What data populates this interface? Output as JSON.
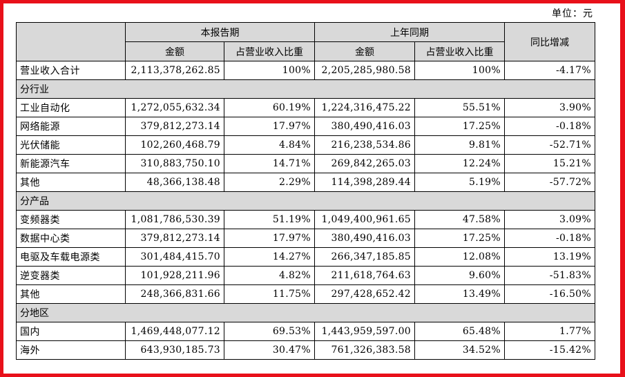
{
  "unit_label": "单位：元",
  "header": {
    "current_period": "本报告期",
    "prior_period": "上年同期",
    "yoy": "同比增减",
    "amount": "金额",
    "ratio": "占营业收入比重"
  },
  "total": {
    "label": "营业收入合计",
    "cur_amount": "2,113,378,262.85",
    "cur_ratio": "100%",
    "prev_amount": "2,205,285,980.58",
    "prev_ratio": "100%",
    "yoy": "-4.17%"
  },
  "sections": [
    {
      "title": "分行业",
      "rows": [
        {
          "label": "工业自动化",
          "cur_amount": "1,272,055,632.34",
          "cur_ratio": "60.19%",
          "prev_amount": "1,224,316,475.22",
          "prev_ratio": "55.51%",
          "yoy": "3.90%"
        },
        {
          "label": "网络能源",
          "cur_amount": "379,812,273.14",
          "cur_ratio": "17.97%",
          "prev_amount": "380,490,416.03",
          "prev_ratio": "17.25%",
          "yoy": "-0.18%"
        },
        {
          "label": "光伏储能",
          "cur_amount": "102,260,468.79",
          "cur_ratio": "4.84%",
          "prev_amount": "216,238,534.86",
          "prev_ratio": "9.81%",
          "yoy": "-52.71%"
        },
        {
          "label": "新能源汽车",
          "cur_amount": "310,883,750.10",
          "cur_ratio": "14.71%",
          "prev_amount": "269,842,265.03",
          "prev_ratio": "12.24%",
          "yoy": "15.21%"
        },
        {
          "label": "其他",
          "cur_amount": "48,366,138.48",
          "cur_ratio": "2.29%",
          "prev_amount": "114,398,289.44",
          "prev_ratio": "5.19%",
          "yoy": "-57.72%"
        }
      ]
    },
    {
      "title": "分产品",
      "rows": [
        {
          "label": "变频器类",
          "cur_amount": "1,081,786,530.39",
          "cur_ratio": "51.19%",
          "prev_amount": "1,049,400,961.65",
          "prev_ratio": "47.58%",
          "yoy": "3.09%"
        },
        {
          "label": "数据中心类",
          "cur_amount": "379,812,273.14",
          "cur_ratio": "17.97%",
          "prev_amount": "380,490,416.03",
          "prev_ratio": "17.25%",
          "yoy": "-0.18%"
        },
        {
          "label": "电驱及车载电源类",
          "cur_amount": "301,484,415.70",
          "cur_ratio": "14.27%",
          "prev_amount": "266,347,185.85",
          "prev_ratio": "12.08%",
          "yoy": "13.19%"
        },
        {
          "label": "逆变器类",
          "cur_amount": "101,928,211.96",
          "cur_ratio": "4.82%",
          "prev_amount": "211,618,764.63",
          "prev_ratio": "9.60%",
          "yoy": "-51.83%"
        },
        {
          "label": "其他",
          "cur_amount": "248,366,831.66",
          "cur_ratio": "11.75%",
          "prev_amount": "297,428,652.42",
          "prev_ratio": "13.49%",
          "yoy": "-16.50%"
        }
      ]
    },
    {
      "title": "分地区",
      "rows": [
        {
          "label": "国内",
          "cur_amount": "1,469,448,077.12",
          "cur_ratio": "69.53%",
          "prev_amount": "1,443,959,597.00",
          "prev_ratio": "65.48%",
          "yoy": "1.77%"
        },
        {
          "label": "海外",
          "cur_amount": "643,930,185.73",
          "cur_ratio": "30.47%",
          "prev_amount": "761,326,383.58",
          "prev_ratio": "34.52%",
          "yoy": "-15.42%"
        }
      ]
    }
  ],
  "colors": {
    "frame": "#e8101a",
    "header_bg": "#d9d9d9",
    "section_bg": "#d9d9d9"
  }
}
